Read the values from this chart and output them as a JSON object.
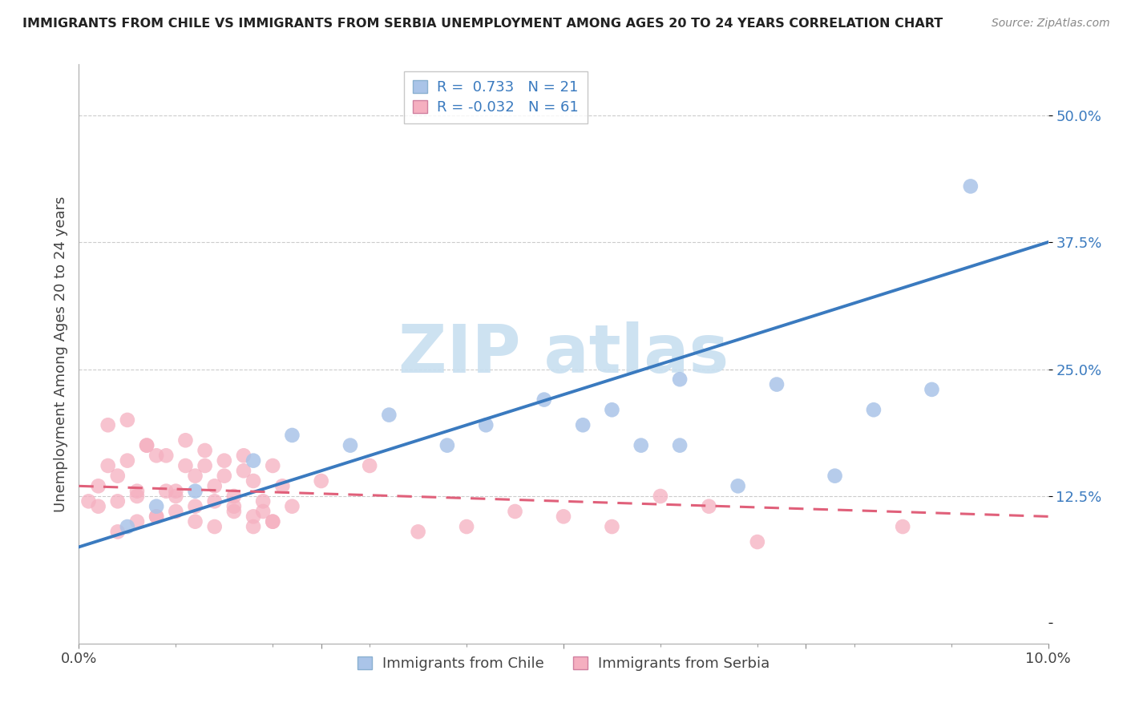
{
  "title": "IMMIGRANTS FROM CHILE VS IMMIGRANTS FROM SERBIA UNEMPLOYMENT AMONG AGES 20 TO 24 YEARS CORRELATION CHART",
  "source": "Source: ZipAtlas.com",
  "ylabel": "Unemployment Among Ages 20 to 24 years",
  "xlim": [
    0.0,
    0.1
  ],
  "ylim": [
    -0.02,
    0.55
  ],
  "legend_R_chile": "0.733",
  "legend_N_chile": "21",
  "legend_R_serbia": "-0.032",
  "legend_N_serbia": "61",
  "chile_color": "#aac4e8",
  "serbia_color": "#f5afc0",
  "chile_line_color": "#3a7abf",
  "serbia_line_color": "#e0607a",
  "background_color": "#ffffff",
  "grid_color": "#cccccc",
  "watermark_color": "#c8dff0",
  "chile_x": [
    0.005,
    0.008,
    0.012,
    0.018,
    0.022,
    0.028,
    0.032,
    0.038,
    0.042,
    0.048,
    0.052,
    0.055,
    0.058,
    0.062,
    0.068,
    0.072,
    0.078,
    0.082,
    0.088,
    0.062,
    0.092
  ],
  "chile_y": [
    0.095,
    0.115,
    0.13,
    0.16,
    0.185,
    0.175,
    0.205,
    0.175,
    0.195,
    0.22,
    0.195,
    0.21,
    0.175,
    0.24,
    0.135,
    0.235,
    0.145,
    0.21,
    0.23,
    0.175,
    0.43
  ],
  "serbia_x": [
    0.001,
    0.002,
    0.003,
    0.004,
    0.005,
    0.006,
    0.007,
    0.008,
    0.009,
    0.01,
    0.011,
    0.012,
    0.013,
    0.014,
    0.015,
    0.016,
    0.017,
    0.018,
    0.019,
    0.02,
    0.003,
    0.005,
    0.007,
    0.009,
    0.011,
    0.013,
    0.015,
    0.017,
    0.019,
    0.021,
    0.004,
    0.006,
    0.008,
    0.01,
    0.012,
    0.014,
    0.016,
    0.018,
    0.02,
    0.022,
    0.002,
    0.004,
    0.006,
    0.008,
    0.01,
    0.012,
    0.014,
    0.016,
    0.018,
    0.02,
    0.025,
    0.03,
    0.035,
    0.04,
    0.045,
    0.05,
    0.055,
    0.06,
    0.065,
    0.07,
    0.085
  ],
  "serbia_y": [
    0.12,
    0.135,
    0.155,
    0.145,
    0.16,
    0.13,
    0.175,
    0.165,
    0.13,
    0.125,
    0.155,
    0.145,
    0.17,
    0.135,
    0.16,
    0.11,
    0.15,
    0.14,
    0.12,
    0.155,
    0.195,
    0.2,
    0.175,
    0.165,
    0.18,
    0.155,
    0.145,
    0.165,
    0.11,
    0.135,
    0.12,
    0.1,
    0.105,
    0.13,
    0.115,
    0.12,
    0.125,
    0.095,
    0.1,
    0.115,
    0.115,
    0.09,
    0.125,
    0.105,
    0.11,
    0.1,
    0.095,
    0.115,
    0.105,
    0.1,
    0.14,
    0.155,
    0.09,
    0.095,
    0.11,
    0.105,
    0.095,
    0.125,
    0.115,
    0.08,
    0.095
  ]
}
